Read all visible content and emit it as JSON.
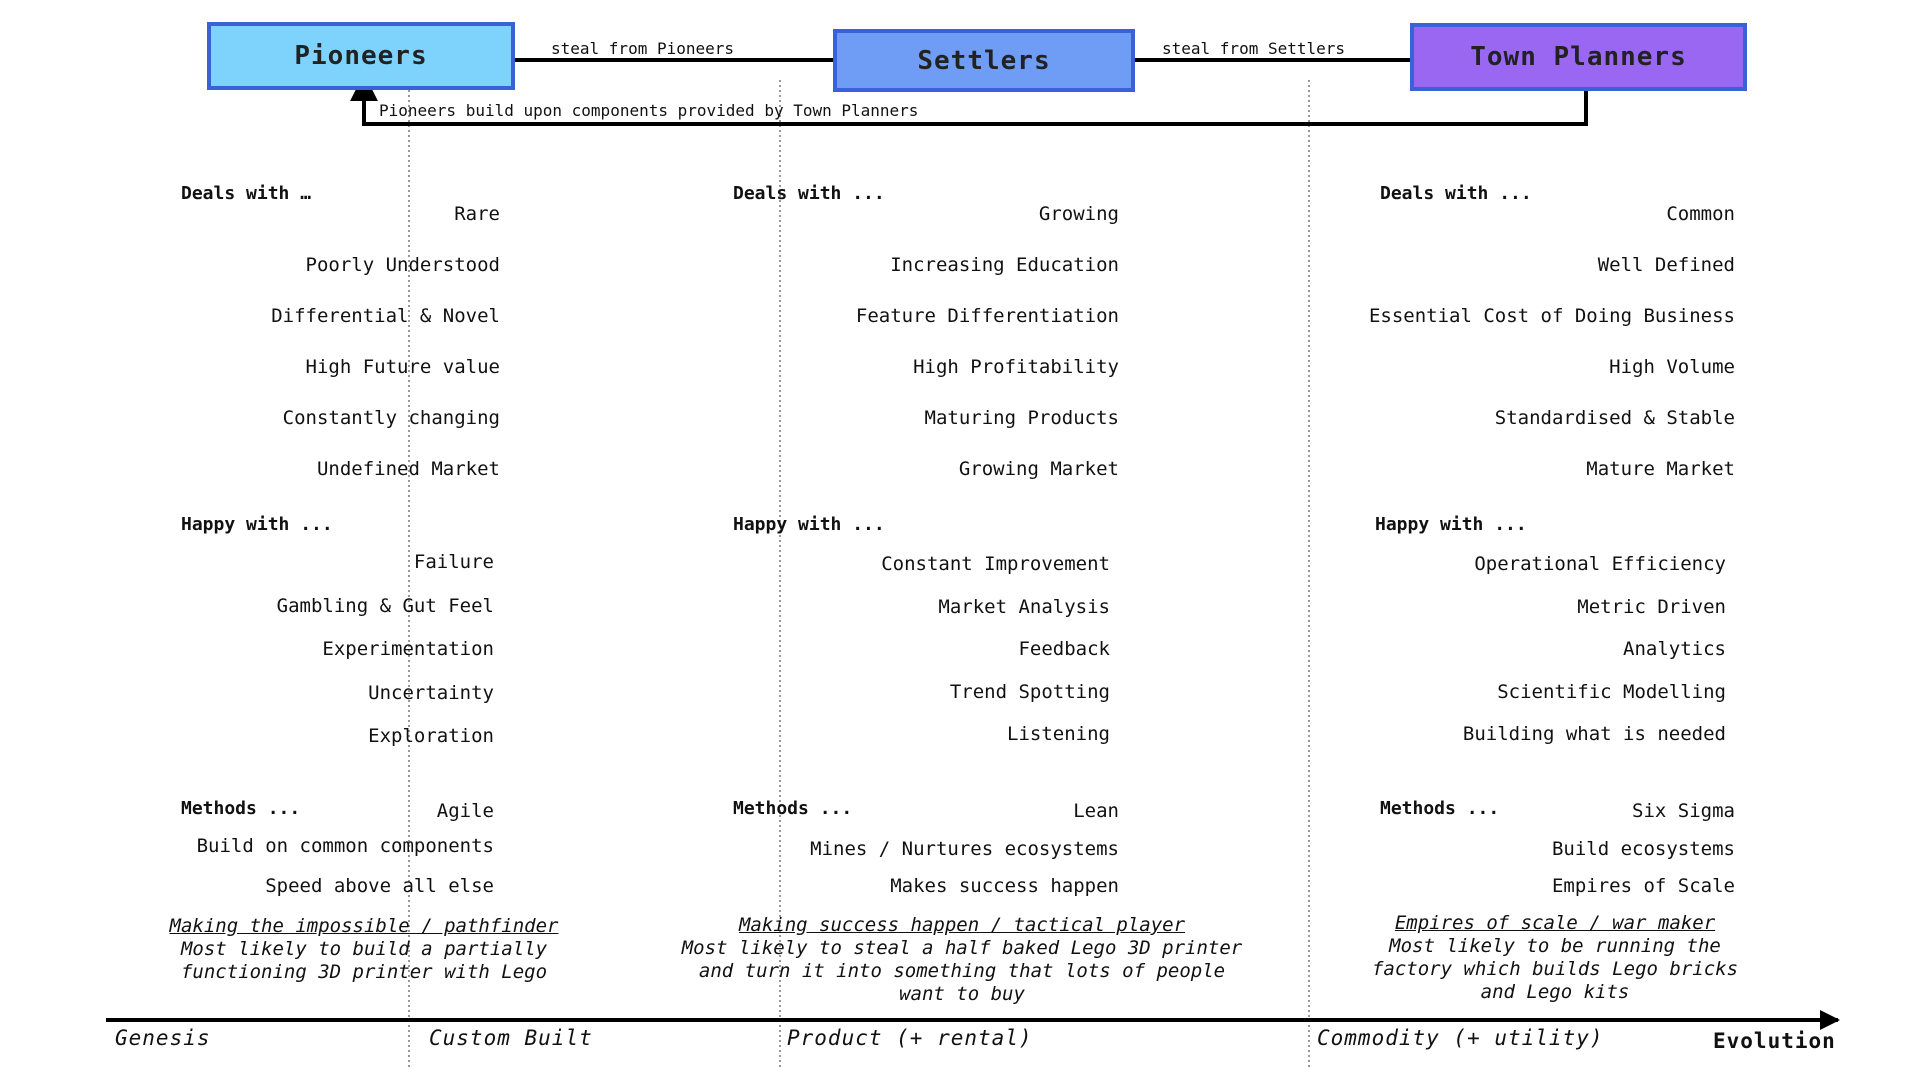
{
  "roles": {
    "pioneers": "Pioneers",
    "settlers": "Settlers",
    "planners": "Town Planners"
  },
  "arrows": {
    "steal_from_pioneers": "steal from Pioneers",
    "steal_from_settlers": "steal from Settlers",
    "feedback": "Pioneers build upon components provided by Town Planners"
  },
  "columns": [
    {
      "deals_heading": "Deals with …",
      "deals": [
        "Rare",
        "Poorly Understood",
        "Differential & Novel",
        "High Future value",
        "Constantly changing",
        "Undefined Market"
      ],
      "happy_heading": "Happy with ...",
      "happy": [
        "Failure",
        "Gambling & Gut Feel",
        "Experimentation",
        "Uncertainty",
        "Exploration"
      ],
      "methods_heading": "Methods ...",
      "methods": [
        "Agile",
        "Build on common components",
        "Speed above all else"
      ],
      "note_title": "Making the impossible / pathfinder",
      "note_lines": [
        "Most likely to build a partially",
        "functioning 3D printer with Lego"
      ]
    },
    {
      "deals_heading": "Deals with ...",
      "deals": [
        "Growing",
        "Increasing Education",
        "Feature Differentiation",
        "High Profitability",
        "Maturing Products",
        "Growing Market"
      ],
      "happy_heading": "Happy with ...",
      "happy": [
        "Constant Improvement",
        "Market Analysis",
        "Feedback",
        "Trend Spotting",
        "Listening"
      ],
      "methods_heading": "Methods ...",
      "methods": [
        "Lean",
        "Mines / Nurtures ecosystems",
        "Makes success happen"
      ],
      "note_title": "Making success happen / tactical player",
      "note_lines": [
        "Most likely to steal a half baked Lego 3D printer",
        "and turn it into something that lots of people",
        "want to buy"
      ]
    },
    {
      "deals_heading": "Deals with ...",
      "deals": [
        "Common",
        "Well Defined",
        "Essential Cost of Doing Business",
        "High Volume",
        "Standardised & Stable",
        "Mature Market"
      ],
      "happy_heading": "Happy with ...",
      "happy": [
        "Operational Efficiency",
        "Metric Driven",
        "Analytics",
        "Scientific Modelling",
        "Building what is needed"
      ],
      "methods_heading": "Methods ...",
      "methods": [
        "Six Sigma",
        "Build ecosystems",
        "Empires of Scale"
      ],
      "note_title": "Empires of scale / war maker",
      "note_lines": [
        "Most likely to be running the",
        "factory which builds Lego bricks",
        "and Lego kits"
      ]
    }
  ],
  "axis": {
    "stages": [
      "Genesis",
      "Custom Built",
      "Product (+ rental)",
      "Commodity (+ utility)"
    ],
    "label": "Evolution"
  }
}
